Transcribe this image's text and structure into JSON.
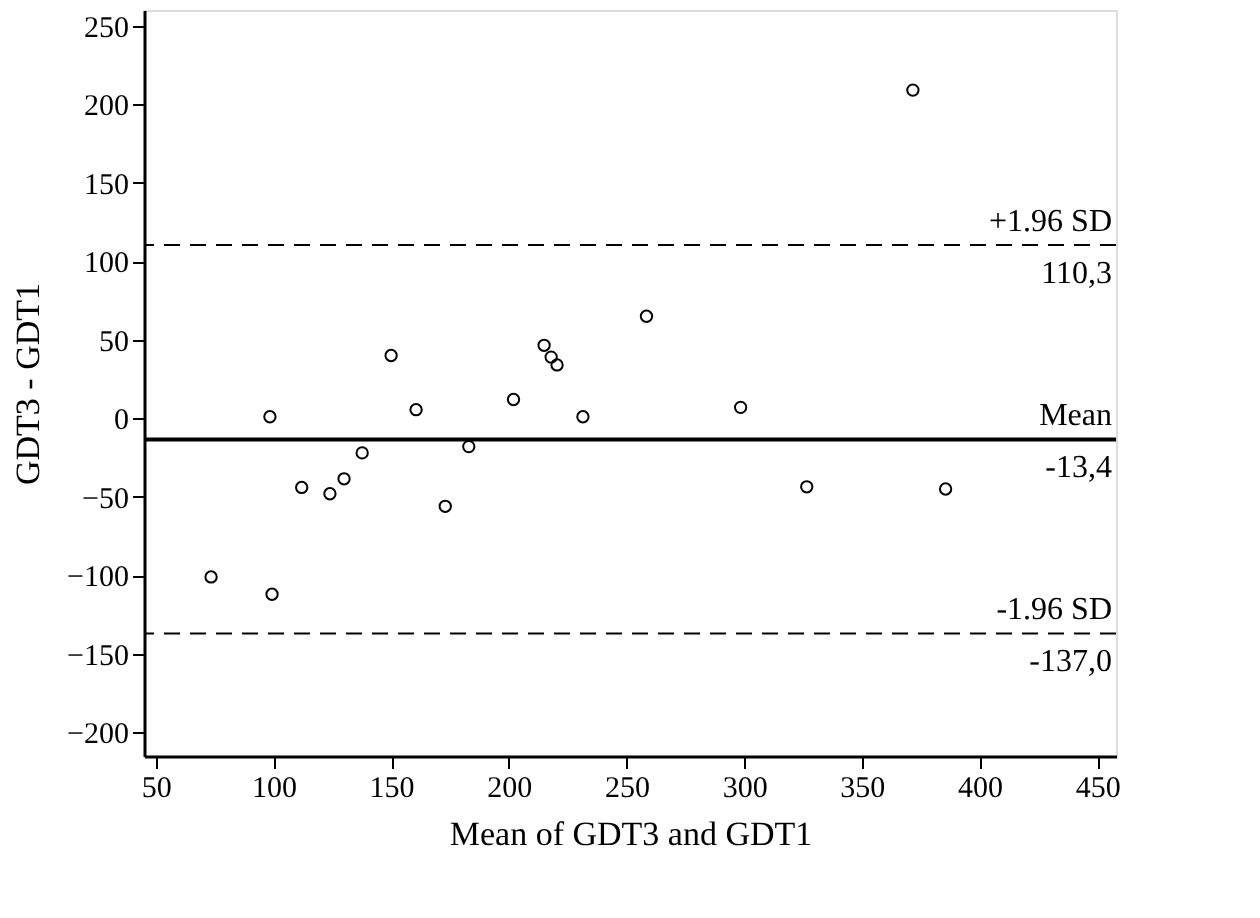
{
  "chart_data": {
    "type": "scatter",
    "xlabel": "Mean of GDT3 and GDT1",
    "ylabel": "GDT3 - GDT1",
    "x": [
      73.5,
      98.5,
      99.4,
      112,
      124,
      130,
      137.7,
      150,
      160.6,
      173,
      183,
      202,
      215,
      218,
      220.5,
      231.5,
      258.5,
      298.5,
      326.6,
      371.7,
      385.6
    ],
    "series": [
      {
        "color": "#000000",
        "values": [
          -101,
          1,
          -112,
          -44,
          -48,
          -38.5,
          -22,
          40,
          5.5,
          -56,
          -18,
          12,
          46.5,
          39,
          34,
          1,
          65,
          7,
          -43.6,
          209,
          -45
        ]
      }
    ],
    "marker": "circle",
    "xlim": [
      45,
      458
    ],
    "ylim": [
      -215,
      260
    ],
    "xticks": [
      50,
      100,
      150,
      200,
      250,
      300,
      350,
      400,
      450
    ],
    "yticks": [
      -200,
      -150,
      -100,
      -50,
      0,
      50,
      100,
      150,
      200,
      250
    ],
    "ref_lines": [
      {
        "axis": "y",
        "value": 110.3,
        "label": "+1.96 SD",
        "line_style": "dashed"
      },
      {
        "axis": "y",
        "value": -13.4,
        "label": "Mean",
        "line_style": "solid"
      },
      {
        "axis": "y",
        "value": -137.0,
        "label": "-1.96 SD",
        "line_style": "dashed"
      }
    ],
    "annotations": [
      {
        "text": "110,3",
        "y": 110.3
      },
      {
        "text": "-13,4",
        "y": -13.4
      },
      {
        "text": "-137,0",
        "y": -137.0
      }
    ]
  }
}
